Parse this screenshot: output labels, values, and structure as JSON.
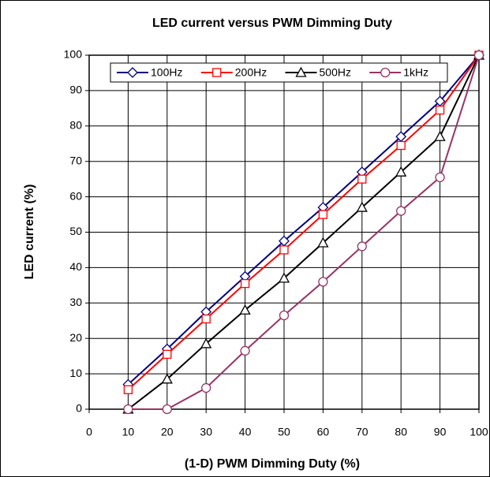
{
  "chart_data": {
    "type": "line",
    "title": "LED current versus PWM Dimming Duty",
    "xlabel": "(1-D) PWM Dimming Duty (%)",
    "ylabel": "LED current (%)",
    "x": [
      10,
      20,
      30,
      40,
      50,
      60,
      70,
      80,
      90,
      100
    ],
    "series": [
      {
        "name": "100Hz",
        "color": "#000080",
        "marker": "diamond",
        "values": [
          7,
          17,
          27.5,
          37.5,
          47.5,
          57,
          67,
          77,
          87,
          100
        ]
      },
      {
        "name": "200Hz",
        "color": "#ff0000",
        "marker": "square",
        "values": [
          5.5,
          15.5,
          25.5,
          35.5,
          45,
          55,
          65,
          74.5,
          84.5,
          100
        ]
      },
      {
        "name": "500Hz",
        "color": "#000000",
        "marker": "triangle",
        "values": [
          0,
          8.5,
          18.5,
          28,
          37,
          47,
          57,
          67,
          77,
          100
        ]
      },
      {
        "name": "1kHz",
        "color": "#993366",
        "marker": "circle",
        "values": [
          0,
          0,
          6,
          16.5,
          26.5,
          36,
          46,
          56,
          65.5,
          100
        ]
      }
    ],
    "xlim": [
      0,
      100
    ],
    "xticks": [
      0,
      10,
      20,
      30,
      40,
      50,
      60,
      70,
      80,
      90,
      100
    ],
    "ylim": [
      0,
      100
    ],
    "yticks": [
      0,
      10,
      20,
      30,
      40,
      50,
      60,
      70,
      80,
      90,
      100
    ],
    "grid": true,
    "legend": "top"
  }
}
